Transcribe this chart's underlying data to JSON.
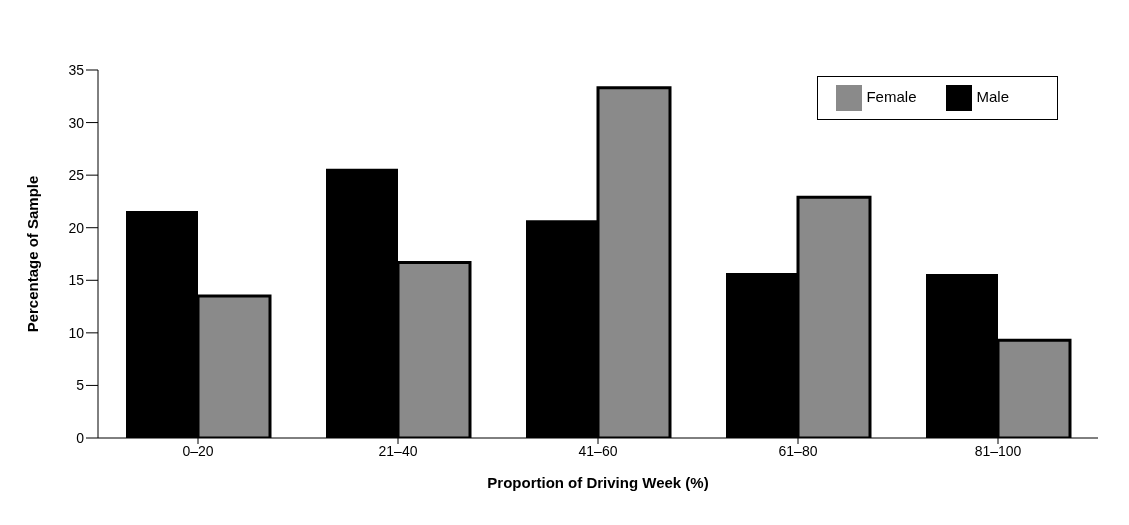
{
  "chart_data": {
    "type": "bar",
    "xlabel": "Proportion of Driving Week (%)",
    "ylabel": "Percentage of Sample",
    "categories": [
      "0–20",
      "21–40",
      "41–60",
      "61–80",
      "81–100"
    ],
    "series": [
      {
        "name": "Male",
        "color": "#000000",
        "values": [
          21.6,
          25.6,
          20.7,
          15.7,
          15.6
        ]
      },
      {
        "name": "Female",
        "color": "#8a8a8a",
        "values": [
          13.5,
          16.7,
          33.3,
          22.9,
          9.3
        ]
      }
    ],
    "ylim": [
      0,
      35
    ],
    "yticks": [
      0,
      5,
      10,
      15,
      20,
      25,
      30,
      35
    ],
    "grid": false,
    "legend": "top right"
  }
}
